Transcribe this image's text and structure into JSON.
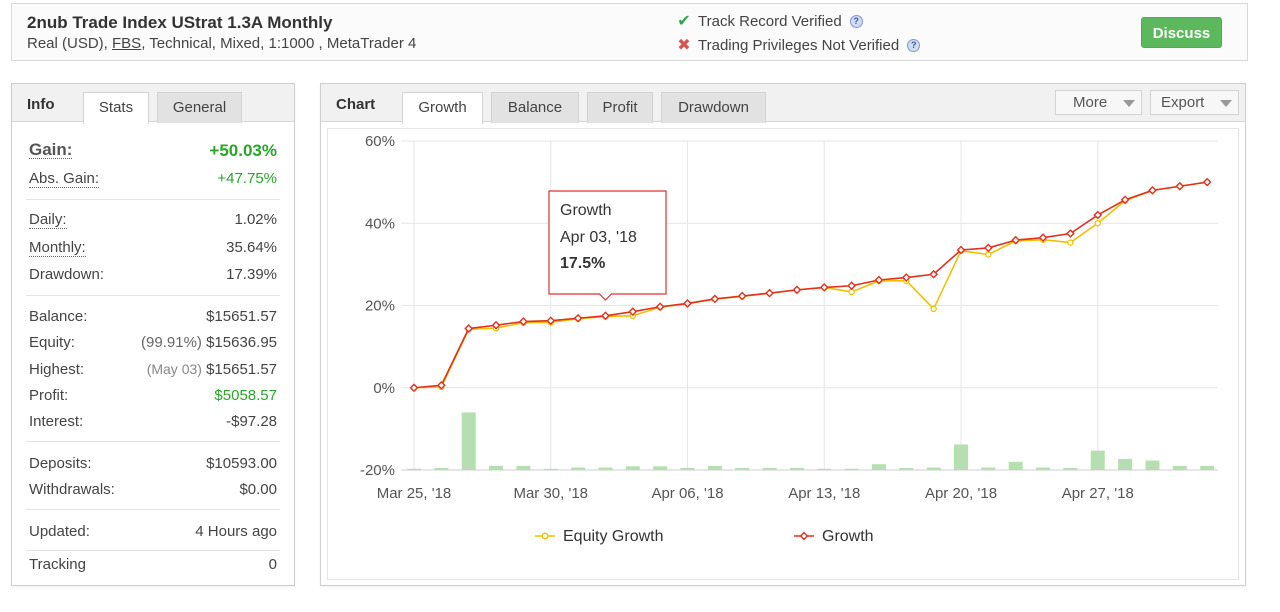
{
  "header": {
    "title": "2nub Trade Index UStrat 1.3A Monthly",
    "subtitle_pre": "Real (USD), ",
    "subtitle_link": "FBS",
    "subtitle_post": ", Technical, Mixed, 1:1000 , MetaTrader 4",
    "track_record": "Track Record Verified",
    "trading_privileges": "Trading Privileges Not Verified",
    "help_glyph": "?",
    "discuss_label": "Discuss"
  },
  "info_panel": {
    "title": "Info",
    "tabs": [
      "Stats",
      "General"
    ],
    "gain_label": "Gain:",
    "gain_value": "+50.03%",
    "abs_gain_label": "Abs. Gain:",
    "abs_gain_value": "+47.75%",
    "daily_label": "Daily:",
    "daily_value": "1.02%",
    "monthly_label": "Monthly:",
    "monthly_value": "35.64%",
    "drawdown_label": "Drawdown:",
    "drawdown_value": "17.39%",
    "balance_label": "Balance:",
    "balance_value": "$15651.57",
    "equity_label": "Equity:",
    "equity_pct": "(99.91%)",
    "equity_value": "$15636.95",
    "highest_label": "Highest:",
    "highest_date": "(May 03)",
    "highest_value": "$15651.57",
    "profit_label": "Profit:",
    "profit_value": "$5058.57",
    "interest_label": "Interest:",
    "interest_value": "-$97.28",
    "deposits_label": "Deposits:",
    "deposits_value": "$10593.00",
    "withdrawals_label": "Withdrawals:",
    "withdrawals_value": "$0.00",
    "updated_label": "Updated:",
    "updated_value": "4 Hours ago",
    "tracking_label": "Tracking",
    "tracking_value": "0"
  },
  "chart_panel": {
    "title": "Chart",
    "tabs": [
      "Growth",
      "Balance",
      "Profit",
      "Drawdown"
    ],
    "more_label": "More",
    "export_label": "Export"
  },
  "colors": {
    "growth": "#e0301e",
    "equity": "#f0c000",
    "bars": "#b5dfb1",
    "positive": "#2aa52a",
    "discuss": "#5cb85c"
  },
  "icons": {
    "verified": "check-icon",
    "not_verified": "cross-icon",
    "help": "question-icon",
    "dropdown": "caret-down-icon"
  },
  "chart_data": {
    "type": "line",
    "y_ticks": [
      "60%",
      "40%",
      "20%",
      "0%",
      "-20%"
    ],
    "ylim": [
      -20,
      60
    ],
    "x_ticks": [
      "Mar 25, '18",
      "Mar 30, '18",
      "Apr 06, '18",
      "Apr 13, '18",
      "Apr 20, '18",
      "Apr 27, '18"
    ],
    "x_tick_index": [
      0,
      5,
      10,
      15,
      20,
      25
    ],
    "grid": true,
    "legend_position": "bottom",
    "series": [
      {
        "name": "Equity Growth",
        "values": [
          0,
          0.2,
          14.2,
          14.5,
          15.8,
          15.9,
          16.8,
          17.3,
          17.5,
          19.6,
          20.4,
          21.6,
          22.2,
          23.0,
          23.8,
          24.4,
          23.3,
          26.0,
          26.0,
          19.2,
          33.3,
          32.4,
          35.7,
          36.0,
          35.3,
          40.0,
          45.5,
          48.0,
          49.0,
          50.0
        ]
      },
      {
        "name": "Growth",
        "values": [
          0,
          0.6,
          14.4,
          15.2,
          16.1,
          16.3,
          16.9,
          17.5,
          18.5,
          19.7,
          20.5,
          21.6,
          22.3,
          23.0,
          23.8,
          24.4,
          24.8,
          26.2,
          26.8,
          27.6,
          33.5,
          34.0,
          35.9,
          36.5,
          37.5,
          42.0,
          45.7,
          48.0,
          49.0,
          50.0
        ]
      }
    ],
    "bars": [
      0.3,
      0.5,
      14.0,
      1.0,
      1.0,
      0.3,
      0.6,
      0.6,
      0.9,
      0.9,
      0.5,
      1.0,
      0.5,
      0.5,
      0.5,
      0.3,
      0.3,
      1.4,
      0.5,
      0.6,
      6.2,
      0.6,
      2.0,
      0.6,
      0.5,
      4.7,
      2.7,
      2.3,
      1.0,
      1.0
    ],
    "tooltip": {
      "series": "Growth",
      "date": "Apr 03, '18",
      "value": "17.5%",
      "index": 7
    }
  }
}
